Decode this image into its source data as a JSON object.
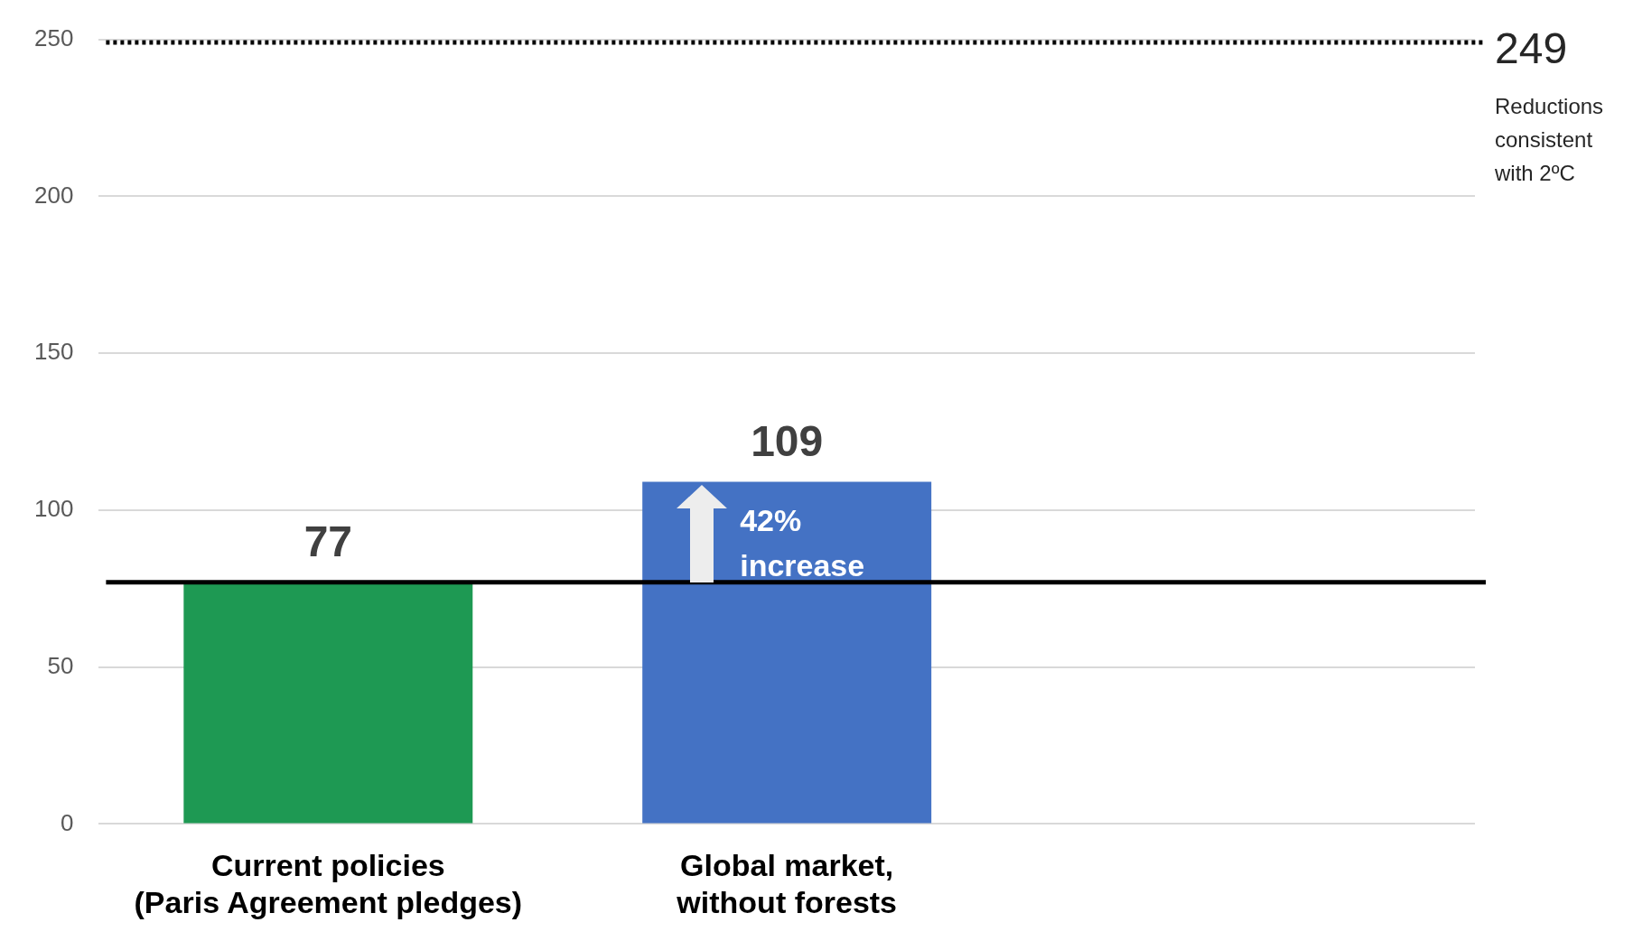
{
  "chart_data": {
    "type": "bar",
    "categories": [
      "Current policies\n(Paris Agreement pledges)",
      "Global market,\nwithout forests",
      null
    ],
    "values": [
      77,
      109,
      null
    ],
    "colors": [
      "#1e9953",
      "#4472c4",
      "#4472c4"
    ],
    "ylim": [
      0,
      250
    ],
    "yticks": [
      0,
      50,
      100,
      150,
      200,
      250
    ],
    "grid": "y",
    "data_labels": true,
    "legend": false,
    "ref_lines": [
      {
        "axis": "y",
        "value": 249,
        "label": "249",
        "color": "#000000",
        "line_style": "dotted"
      },
      {
        "axis": "y",
        "value": 77,
        "color": "#000000",
        "line_style": "solid"
      }
    ],
    "annotations": [
      "Reductions consistent with 2ºC",
      {
        "text": "42% increase",
        "x": "Global market,\nwithout forests",
        "y": 109
      }
    ]
  }
}
